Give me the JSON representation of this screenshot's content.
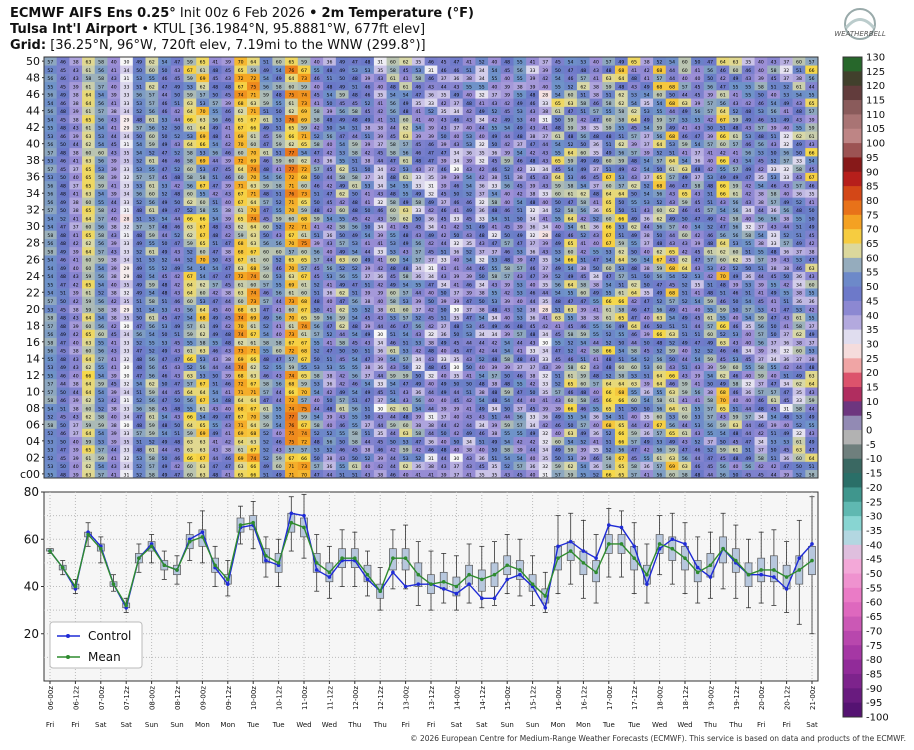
{
  "header": {
    "model": "ECMWF AIFS Ens 0.25°",
    "init": "Init 00z 6 Feb 2026",
    "variable": "2m Temperature (°F)",
    "station_name": "Tulsa Int'l Airport",
    "station_info": "KTUL [36.1984°N, 95.8881°W, 677ft elev]",
    "grid_label": "Grid:",
    "grid_info": "[36.25°N, 96°W, 720ft elev, 7.19mi to the WNW (299.8°)]",
    "logo_text": "WEATHERBELL"
  },
  "copyright": "© 2026 European Centre for Medium-Range Weather Forecasts (ECMWF). This service is based on data and products of the ECMWF.",
  "colors": {
    "control": "#1f2bd6",
    "mean": "#2e8b2e",
    "box": "#b7c7dd",
    "box_edge": "#555555"
  },
  "chart_data": [
    {
      "type": "heatmap",
      "y_labels": [
        "c00",
        "02",
        "04",
        "06",
        "08",
        "10",
        "12",
        "14",
        "16",
        "18",
        "20",
        "22",
        "24",
        "26",
        "28",
        "30",
        "32",
        "34",
        "36",
        "38",
        "40",
        "42",
        "44",
        "46",
        "48",
        "50"
      ],
      "members": 51,
      "x_count": 61,
      "values_source": "ensemble member 2m temperatures (°F); each cell also shows its value as text"
    },
    {
      "type": "line",
      "ylim": [
        0,
        80
      ],
      "yticks": [
        20,
        40,
        60,
        80
      ],
      "grid": true,
      "legend_position": "bottom-left",
      "x_labels": [
        "06-00z",
        "06-12z",
        "07-00z",
        "07-12z",
        "08-00z",
        "08-12z",
        "09-00z",
        "09-12z",
        "10-00z",
        "10-12z",
        "11-00z",
        "11-12z",
        "12-00z",
        "12-12z",
        "13-00z",
        "13-12z",
        "14-00z",
        "14-12z",
        "15-00z",
        "15-12z",
        "16-00z",
        "16-12z",
        "17-00z",
        "17-12z",
        "18-00z",
        "18-12z",
        "19-00z",
        "19-12z",
        "20-00z",
        "20-12z",
        "21-00z"
      ],
      "day_labels": [
        "Fri",
        "Fri",
        "Sat",
        "Sat",
        "Sun",
        "Sun",
        "Mon",
        "Mon",
        "Tue",
        "Tue",
        "Wed",
        "Wed",
        "Thu",
        "Thu",
        "Fri",
        "Fri",
        "Sat",
        "Sat",
        "Sun",
        "Sun",
        "Mon",
        "Mon",
        "Tue",
        "Tue",
        "Wed",
        "Wed",
        "Thu",
        "Thu",
        "Fri",
        "Fri",
        "Sat"
      ],
      "series": [
        {
          "name": "Control",
          "values": [
            55,
            48,
            39,
            63,
            57,
            41,
            31,
            52,
            58,
            49,
            47,
            60,
            63,
            48,
            41,
            65,
            66,
            51,
            49,
            71,
            70,
            47,
            44,
            51,
            51,
            43,
            38,
            46,
            40,
            41,
            41,
            39,
            37,
            41,
            35,
            35,
            43,
            45,
            40,
            31,
            57,
            59,
            55,
            52,
            66,
            65,
            57,
            41,
            56,
            60,
            58,
            48,
            44,
            56,
            50,
            45,
            45,
            44,
            39,
            52,
            58
          ]
        },
        {
          "name": "Mean",
          "values": [
            55,
            48,
            40,
            62,
            56,
            41,
            32,
            52,
            57,
            49,
            47,
            59,
            61,
            49,
            43,
            66,
            67,
            53,
            50,
            67,
            65,
            50,
            46,
            52,
            52,
            45,
            38,
            52,
            52,
            45,
            41,
            42,
            40,
            45,
            43,
            45,
            49,
            47,
            41,
            36,
            52,
            55,
            50,
            46,
            58,
            58,
            52,
            45,
            58,
            56,
            52,
            46,
            49,
            56,
            51,
            45,
            47,
            47,
            44,
            47,
            51
          ]
        }
      ],
      "boxes": {
        "q1": [
          55,
          47,
          39,
          61,
          55,
          40,
          31,
          50,
          55,
          47,
          45,
          56,
          57,
          46,
          41,
          63,
          64,
          50,
          46,
          63,
          61,
          46,
          42,
          48,
          48,
          42,
          35,
          47,
          47,
          40,
          37,
          39,
          36,
          41,
          38,
          40,
          45,
          43,
          38,
          33,
          47,
          51,
          45,
          42,
          54,
          54,
          47,
          41,
          54,
          51,
          47,
          42,
          44,
          50,
          46,
          40,
          42,
          42,
          39,
          41,
          45
        ],
        "q3": [
          56,
          49,
          41,
          63,
          58,
          42,
          33,
          54,
          59,
          51,
          49,
          62,
          64,
          52,
          45,
          69,
          70,
          56,
          54,
          71,
          69,
          54,
          50,
          56,
          56,
          49,
          41,
          56,
          56,
          50,
          45,
          46,
          44,
          49,
          47,
          50,
          53,
          51,
          45,
          39,
          57,
          59,
          55,
          51,
          62,
          62,
          57,
          49,
          62,
          61,
          57,
          51,
          54,
          61,
          56,
          50,
          52,
          53,
          49,
          53,
          57
        ],
        "min": [
          54,
          45,
          37,
          57,
          50,
          38,
          29,
          46,
          50,
          43,
          41,
          51,
          50,
          40,
          36,
          58,
          56,
          44,
          40,
          55,
          52,
          38,
          35,
          40,
          40,
          36,
          30,
          39,
          39,
          32,
          30,
          33,
          30,
          33,
          31,
          32,
          37,
          36,
          32,
          29,
          37,
          41,
          35,
          33,
          44,
          44,
          37,
          33,
          45,
          41,
          37,
          33,
          35,
          39,
          35,
          31,
          33,
          32,
          29,
          24,
          20
        ],
        "max": [
          56,
          51,
          43,
          67,
          61,
          45,
          35,
          58,
          62,
          55,
          53,
          67,
          72,
          57,
          51,
          74,
          76,
          61,
          60,
          78,
          79,
          62,
          57,
          64,
          63,
          55,
          48,
          64,
          66,
          59,
          55,
          54,
          53,
          58,
          57,
          59,
          62,
          60,
          53,
          46,
          70,
          71,
          68,
          62,
          73,
          72,
          67,
          58,
          70,
          71,
          67,
          61,
          63,
          71,
          66,
          60,
          63,
          64,
          59,
          68,
          78
        ]
      }
    },
    {
      "type": "colorbar",
      "ticks": [
        130,
        125,
        120,
        115,
        110,
        105,
        100,
        95,
        90,
        85,
        80,
        75,
        70,
        65,
        60,
        55,
        50,
        45,
        40,
        35,
        30,
        25,
        20,
        15,
        10,
        5,
        0,
        -5,
        -10,
        -15,
        -20,
        -25,
        -30,
        -35,
        -40,
        -45,
        -50,
        -55,
        -60,
        -65,
        -70,
        -75,
        -80,
        -85,
        -90,
        -95,
        -100
      ]
    }
  ]
}
